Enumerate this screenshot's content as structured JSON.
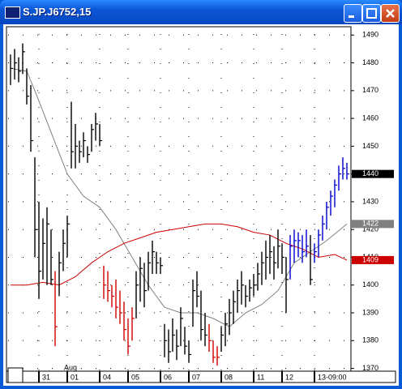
{
  "window_title": "S.JP.J6752,15",
  "chart_data": {
    "type": "ohlc",
    "month_label": "Aug",
    "month_label_at": 14,
    "xlim": [
      -1,
      84
    ],
    "xticks": [
      {
        "value": 7,
        "label": "31"
      },
      {
        "value": 14,
        "label": "01"
      },
      {
        "value": 22,
        "label": "04"
      },
      {
        "value": 29,
        "label": "05"
      },
      {
        "value": 37,
        "label": "06"
      },
      {
        "value": 44,
        "label": "07"
      },
      {
        "value": 52,
        "label": "08"
      },
      {
        "value": 60,
        "label": "11"
      },
      {
        "value": 67,
        "label": "12"
      },
      {
        "value": 75,
        "label": "13-09:00"
      }
    ],
    "ylim": [
      1369,
      1493
    ],
    "yticks": [
      1370,
      1380,
      1390,
      1400,
      1410,
      1420,
      1430,
      1440,
      1450,
      1460,
      1470,
      1480,
      1490
    ],
    "grid": true,
    "bars": {
      "high": [
        1483,
        1485,
        1482,
        1487,
        1478,
        1472,
        1446,
        1430,
        1424,
        1428,
        1420,
        1405,
        1412,
        1420,
        1425,
        1466,
        1458,
        1452,
        1455,
        1450,
        1458,
        1462,
        1458,
        1407,
        1405,
        1400,
        1402,
        1398,
        1394,
        1388,
        1392,
        1405,
        1410,
        1408,
        1412,
        1416,
        1412,
        1410,
        1386,
        1384,
        1388,
        1384,
        1392,
        1385,
        1380,
        1402,
        1405,
        1398,
        1390,
        1386,
        1380,
        1378,
        1385,
        1390,
        1395,
        1398,
        1402,
        1405,
        1400,
        1402,
        1404,
        1408,
        1412,
        1416,
        1418,
        1414,
        1420,
        1415,
        1410,
        1418,
        1420,
        1419,
        1418,
        1420,
        1418,
        1415,
        1420,
        1425,
        1430,
        1434,
        1438,
        1443,
        1446,
        1444
      ],
      "low": [
        1472,
        1474,
        1473,
        1476,
        1465,
        1448,
        1410,
        1395,
        1402,
        1400,
        1400,
        1378,
        1396,
        1405,
        1410,
        1442,
        1442,
        1444,
        1446,
        1444,
        1448,
        1452,
        1450,
        1395,
        1394,
        1392,
        1388,
        1386,
        1380,
        1375,
        1380,
        1388,
        1394,
        1392,
        1398,
        1404,
        1404,
        1404,
        1374,
        1372,
        1376,
        1373,
        1378,
        1375,
        1372,
        1385,
        1392,
        1380,
        1378,
        1376,
        1372,
        1371,
        1376,
        1378,
        1382,
        1386,
        1390,
        1393,
        1392,
        1394,
        1396,
        1398,
        1400,
        1402,
        1404,
        1402,
        1406,
        1404,
        1390,
        1402,
        1408,
        1410,
        1408,
        1410,
        1400,
        1408,
        1410,
        1416,
        1420,
        1425,
        1428,
        1434,
        1438,
        1438
      ],
      "close": [
        1478,
        1480,
        1477,
        1484,
        1468,
        1452,
        1420,
        1405,
        1415,
        1422,
        1402,
        1385,
        1408,
        1415,
        1422,
        1448,
        1450,
        1448,
        1452,
        1447,
        1456,
        1458,
        1452,
        1400,
        1398,
        1396,
        1392,
        1390,
        1384,
        1378,
        1388,
        1400,
        1406,
        1398,
        1408,
        1412,
        1408,
        1407,
        1380,
        1376,
        1382,
        1378,
        1388,
        1378,
        1375,
        1398,
        1396,
        1384,
        1382,
        1380,
        1374,
        1374,
        1382,
        1386,
        1390,
        1394,
        1398,
        1400,
        1396,
        1399,
        1400,
        1404,
        1408,
        1410,
        1412,
        1408,
        1414,
        1410,
        1402,
        1414,
        1416,
        1416,
        1412,
        1414,
        1402,
        1412,
        1418,
        1422,
        1428,
        1432,
        1436,
        1440,
        1442,
        1440
      ],
      "colors": [
        "#000",
        "#000",
        "#000",
        "#000",
        "#000",
        "#000",
        "#000",
        "#000",
        "#000",
        "#000",
        "#000",
        "#d00000",
        "#000",
        "#000",
        "#000",
        "#000",
        "#000",
        "#000",
        "#000",
        "#000",
        "#000",
        "#000",
        "#000",
        "#d00000",
        "#d00000",
        "#d00000",
        "#d00000",
        "#d00000",
        "#d00000",
        "#d00000",
        "#d00000",
        "#000",
        "#000",
        "#000",
        "#000",
        "#000",
        "#000",
        "#000",
        "#000",
        "#000",
        "#000",
        "#000",
        "#000",
        "#000",
        "#000",
        "#000",
        "#000",
        "#000",
        "#000",
        "#d00000",
        "#d00000",
        "#d00000",
        "#000",
        "#000",
        "#000",
        "#000",
        "#000",
        "#000",
        "#000",
        "#000",
        "#000",
        "#000",
        "#000",
        "#000",
        "#000",
        "#000",
        "#000",
        "#000",
        "#000",
        "#0000cc",
        "#0000cc",
        "#0000cc",
        "#0000cc",
        "#0000cc",
        "#000",
        "#0000cc",
        "#0000cc",
        "#0000cc",
        "#0000cc",
        "#0000cc",
        "#0000cc",
        "#0000cc",
        "#0000cc",
        "#0000cc"
      ]
    },
    "lines": [
      {
        "color": "#808080",
        "x": [
          0,
          4,
          6,
          10,
          14,
          18,
          22,
          26,
          30,
          34,
          38,
          42,
          46,
          50,
          54,
          58,
          62,
          66,
          70,
          74,
          78,
          83
        ],
        "values": [
          1478,
          1477,
          1470,
          1455,
          1440,
          1432,
          1428,
          1420,
          1410,
          1400,
          1392,
          1390,
          1390,
          1388,
          1385,
          1390,
          1393,
          1398,
          1408,
          1412,
          1416,
          1422
        ]
      },
      {
        "color": "#cc0000",
        "x": [
          0,
          4,
          8,
          12,
          16,
          20,
          24,
          28,
          32,
          36,
          40,
          44,
          48,
          52,
          56,
          60,
          64,
          68,
          72,
          76,
          80,
          83
        ],
        "values": [
          1400,
          1400,
          1401,
          1400,
          1403,
          1408,
          1412,
          1415,
          1417,
          1419,
          1420,
          1421,
          1422,
          1422,
          1421,
          1419,
          1418,
          1415,
          1413,
          1410,
          1411,
          1409
        ]
      }
    ],
    "price_markers": [
      {
        "value": 1440,
        "color": "#000000"
      },
      {
        "value": 1422,
        "color": "#808080"
      },
      {
        "value": 1409,
        "color": "#cc0000"
      }
    ]
  }
}
